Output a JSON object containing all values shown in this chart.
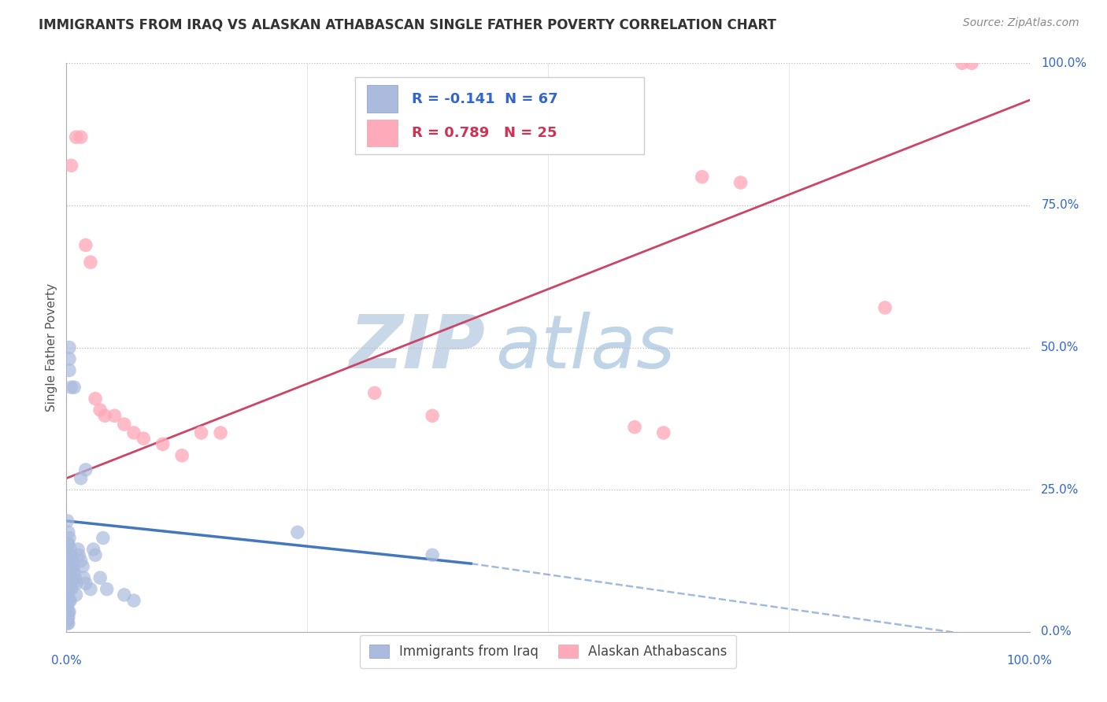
{
  "title": "IMMIGRANTS FROM IRAQ VS ALASKAN ATHABASCAN SINGLE FATHER POVERTY CORRELATION CHART",
  "source": "Source: ZipAtlas.com",
  "ylabel": "Single Father Poverty",
  "ytick_labels": [
    "0.0%",
    "25.0%",
    "50.0%",
    "75.0%",
    "100.0%"
  ],
  "xtick_labels": [
    "0.0%",
    "100.0%"
  ],
  "legend_r1": "R = -0.141  N = 67",
  "legend_r2": "R = 0.789   N = 25",
  "legend_label1": "Immigrants from Iraq",
  "legend_label2": "Alaskan Athabascans",
  "blue_line_color": "#4477bb",
  "pink_line_color": "#cc4466",
  "blue_scatter_color": "#aabbdd",
  "pink_scatter_color": "#ffaabb",
  "background_color": "#ffffff",
  "watermark_zip_color": "#c8d8e8",
  "watermark_atlas_color": "#c0d4e8",
  "title_color": "#333333",
  "source_color": "#888888",
  "axis_label_color": "#3366cc",
  "ylabel_color": "#555555",
  "blue_dots": [
    [
      0.001,
      0.195
    ],
    [
      0.001,
      0.155
    ],
    [
      0.001,
      0.125
    ],
    [
      0.001,
      0.095
    ],
    [
      0.001,
      0.075
    ],
    [
      0.001,
      0.065
    ],
    [
      0.001,
      0.055
    ],
    [
      0.001,
      0.045
    ],
    [
      0.001,
      0.035
    ],
    [
      0.001,
      0.025
    ],
    [
      0.001,
      0.02
    ],
    [
      0.001,
      0.015
    ],
    [
      0.002,
      0.175
    ],
    [
      0.002,
      0.155
    ],
    [
      0.002,
      0.135
    ],
    [
      0.002,
      0.115
    ],
    [
      0.002,
      0.095
    ],
    [
      0.002,
      0.075
    ],
    [
      0.002,
      0.055
    ],
    [
      0.002,
      0.035
    ],
    [
      0.002,
      0.025
    ],
    [
      0.002,
      0.015
    ],
    [
      0.003,
      0.165
    ],
    [
      0.003,
      0.135
    ],
    [
      0.003,
      0.115
    ],
    [
      0.003,
      0.095
    ],
    [
      0.003,
      0.075
    ],
    [
      0.003,
      0.055
    ],
    [
      0.003,
      0.035
    ],
    [
      0.004,
      0.145
    ],
    [
      0.004,
      0.115
    ],
    [
      0.004,
      0.085
    ],
    [
      0.004,
      0.055
    ],
    [
      0.005,
      0.135
    ],
    [
      0.005,
      0.105
    ],
    [
      0.005,
      0.075
    ],
    [
      0.006,
      0.125
    ],
    [
      0.006,
      0.095
    ],
    [
      0.007,
      0.115
    ],
    [
      0.007,
      0.085
    ],
    [
      0.008,
      0.105
    ],
    [
      0.009,
      0.095
    ],
    [
      0.01,
      0.085
    ],
    [
      0.01,
      0.065
    ],
    [
      0.012,
      0.145
    ],
    [
      0.013,
      0.135
    ],
    [
      0.015,
      0.125
    ],
    [
      0.017,
      0.115
    ],
    [
      0.018,
      0.095
    ],
    [
      0.02,
      0.085
    ],
    [
      0.025,
      0.075
    ],
    [
      0.028,
      0.145
    ],
    [
      0.03,
      0.135
    ],
    [
      0.035,
      0.095
    ],
    [
      0.038,
      0.165
    ],
    [
      0.042,
      0.075
    ],
    [
      0.06,
      0.065
    ],
    [
      0.07,
      0.055
    ],
    [
      0.003,
      0.46
    ],
    [
      0.003,
      0.48
    ],
    [
      0.003,
      0.5
    ],
    [
      0.005,
      0.43
    ],
    [
      0.008,
      0.43
    ],
    [
      0.24,
      0.175
    ],
    [
      0.38,
      0.135
    ],
    [
      0.02,
      0.285
    ],
    [
      0.015,
      0.27
    ]
  ],
  "pink_dots": [
    [
      0.005,
      0.82
    ],
    [
      0.01,
      0.87
    ],
    [
      0.015,
      0.87
    ],
    [
      0.02,
      0.68
    ],
    [
      0.025,
      0.65
    ],
    [
      0.03,
      0.41
    ],
    [
      0.035,
      0.39
    ],
    [
      0.04,
      0.38
    ],
    [
      0.05,
      0.38
    ],
    [
      0.06,
      0.365
    ],
    [
      0.07,
      0.35
    ],
    [
      0.08,
      0.34
    ],
    [
      0.1,
      0.33
    ],
    [
      0.12,
      0.31
    ],
    [
      0.14,
      0.35
    ],
    [
      0.16,
      0.35
    ],
    [
      0.32,
      0.42
    ],
    [
      0.38,
      0.38
    ],
    [
      0.59,
      0.36
    ],
    [
      0.62,
      0.35
    ],
    [
      0.66,
      0.8
    ],
    [
      0.7,
      0.79
    ],
    [
      0.85,
      0.57
    ],
    [
      0.93,
      1.0
    ],
    [
      0.94,
      1.0
    ]
  ],
  "blue_line_solid": [
    [
      0.0,
      0.195
    ],
    [
      0.42,
      0.12
    ]
  ],
  "blue_line_dashed": [
    [
      0.42,
      0.12
    ],
    [
      1.0,
      -0.02
    ]
  ],
  "pink_line": [
    [
      0.0,
      0.27
    ],
    [
      1.0,
      0.935
    ]
  ],
  "xlim": [
    0.0,
    1.0
  ],
  "ylim": [
    0.0,
    1.0
  ],
  "title_fontsize": 12,
  "source_fontsize": 10,
  "axis_tick_fontsize": 11,
  "ylabel_fontsize": 11,
  "legend_fontsize": 13,
  "dot_size": 160
}
